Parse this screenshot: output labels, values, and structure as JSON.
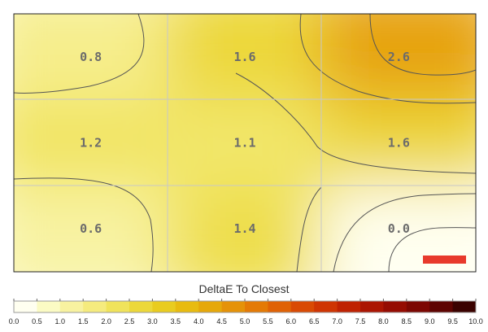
{
  "chart_data": {
    "type": "heatmap",
    "rows": 3,
    "cols": 3,
    "values": [
      [
        0.8,
        1.6,
        2.6
      ],
      [
        1.2,
        1.1,
        1.6
      ],
      [
        0.6,
        1.4,
        0.0
      ]
    ],
    "labels": [
      [
        "0.8",
        "1.6",
        "2.6"
      ],
      [
        "1.2",
        "1.1",
        "1.6"
      ],
      [
        "0.6",
        "1.4",
        "0.0"
      ]
    ],
    "colorbar": {
      "title": "DeltaE To Closest",
      "min": 0,
      "max": 10,
      "ticks": [
        "0.0",
        "0.5",
        "1.0",
        "1.5",
        "2.0",
        "2.5",
        "3.0",
        "3.5",
        "4.0",
        "4.5",
        "5.0",
        "5.5",
        "6.0",
        "6.5",
        "7.0",
        "7.5",
        "8.0",
        "8.5",
        "9.0",
        "9.5",
        "10.0"
      ],
      "colors": [
        "#fffff0",
        "#fbfbc4",
        "#f8f2a0",
        "#f5eb7e",
        "#f0e35b",
        "#ecd83a",
        "#e9cc20",
        "#e8bb10",
        "#e6a80a",
        "#e59208",
        "#e47a06",
        "#e06205",
        "#d94a04",
        "#cf3503",
        "#bf2202",
        "#ab1502",
        "#950c02",
        "#7c0702",
        "#5e0401",
        "#3a0200"
      ]
    },
    "accent_color": "#e83a2c"
  }
}
